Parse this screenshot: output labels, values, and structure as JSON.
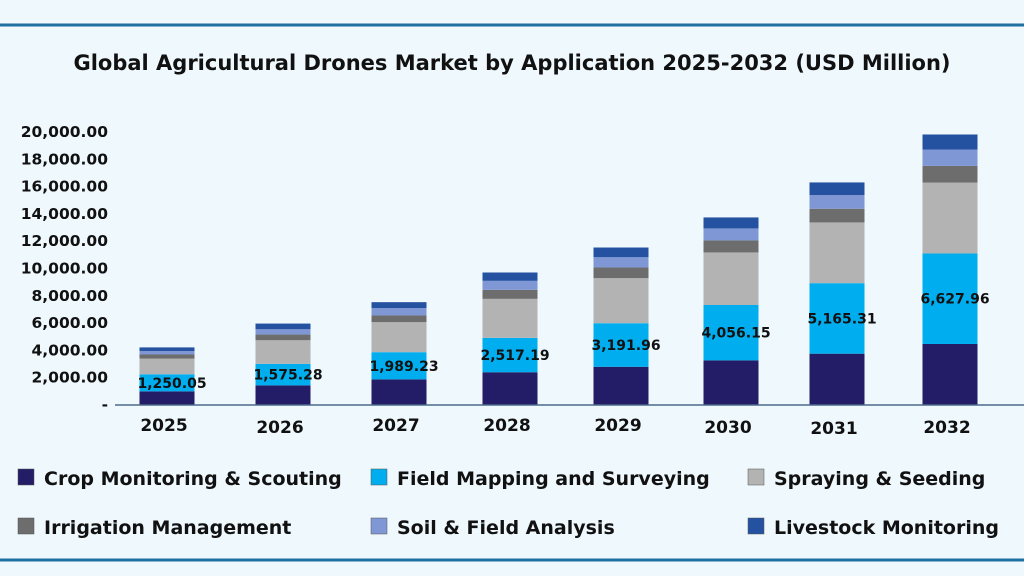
{
  "chart_data": {
    "type": "bar",
    "stacked": true,
    "title": "Global Agricultural Drones Market by Application 2025-2032 (USD Million)",
    "xlabel": "",
    "ylabel": "",
    "ylim": [
      0,
      20000
    ],
    "yticks": [
      "-",
      "2,000.00",
      "4,000.00",
      "6,000.00",
      "8,000.00",
      "10,000.00",
      "12,000.00",
      "14,000.00",
      "16,000.00",
      "18,000.00",
      "20,000.00"
    ],
    "grid": false,
    "legend_placement": "bottom",
    "categories": [
      "2025",
      "2026",
      "2027",
      "2028",
      "2029",
      "2030",
      "2031",
      "2032"
    ],
    "series": [
      {
        "name": "Crop Monitoring & Scouting",
        "color": "#231c66",
        "values": [
          1000,
          1440,
          1880,
          2400,
          2800,
          3270,
          3760,
          4470
        ]
      },
      {
        "name": "Field Mapping and Surveying",
        "color": "#00aeef",
        "values": [
          1250.05,
          1575.28,
          1989.23,
          2517.19,
          3191.96,
          4056.15,
          5165.31,
          6627.96
        ],
        "labels": [
          "1,250.05",
          "1,575.28",
          "1,989.23",
          "2,517.19",
          "3,191.96",
          "4,056.15",
          "5,165.31",
          "6,627.96"
        ]
      },
      {
        "name": "Spraying & Seeding",
        "color": "#b3b3b3",
        "values": [
          1150,
          1730,
          2200,
          2860,
          3300,
          3850,
          4450,
          5200
        ]
      },
      {
        "name": "Irrigation Management",
        "color": "#6d6d6d",
        "values": [
          300,
          415,
          490,
          660,
          780,
          880,
          1000,
          1220
        ]
      },
      {
        "name": "Soil & Field Analysis",
        "color": "#7f97d4",
        "values": [
          250,
          390,
          535,
          660,
          755,
          880,
          1000,
          1200
        ]
      },
      {
        "name": "Livestock Monitoring",
        "color": "#2452a0",
        "values": [
          270,
          415,
          440,
          610,
          710,
          805,
          930,
          1100
        ]
      }
    ]
  },
  "frame_color": "#1f6fa0"
}
